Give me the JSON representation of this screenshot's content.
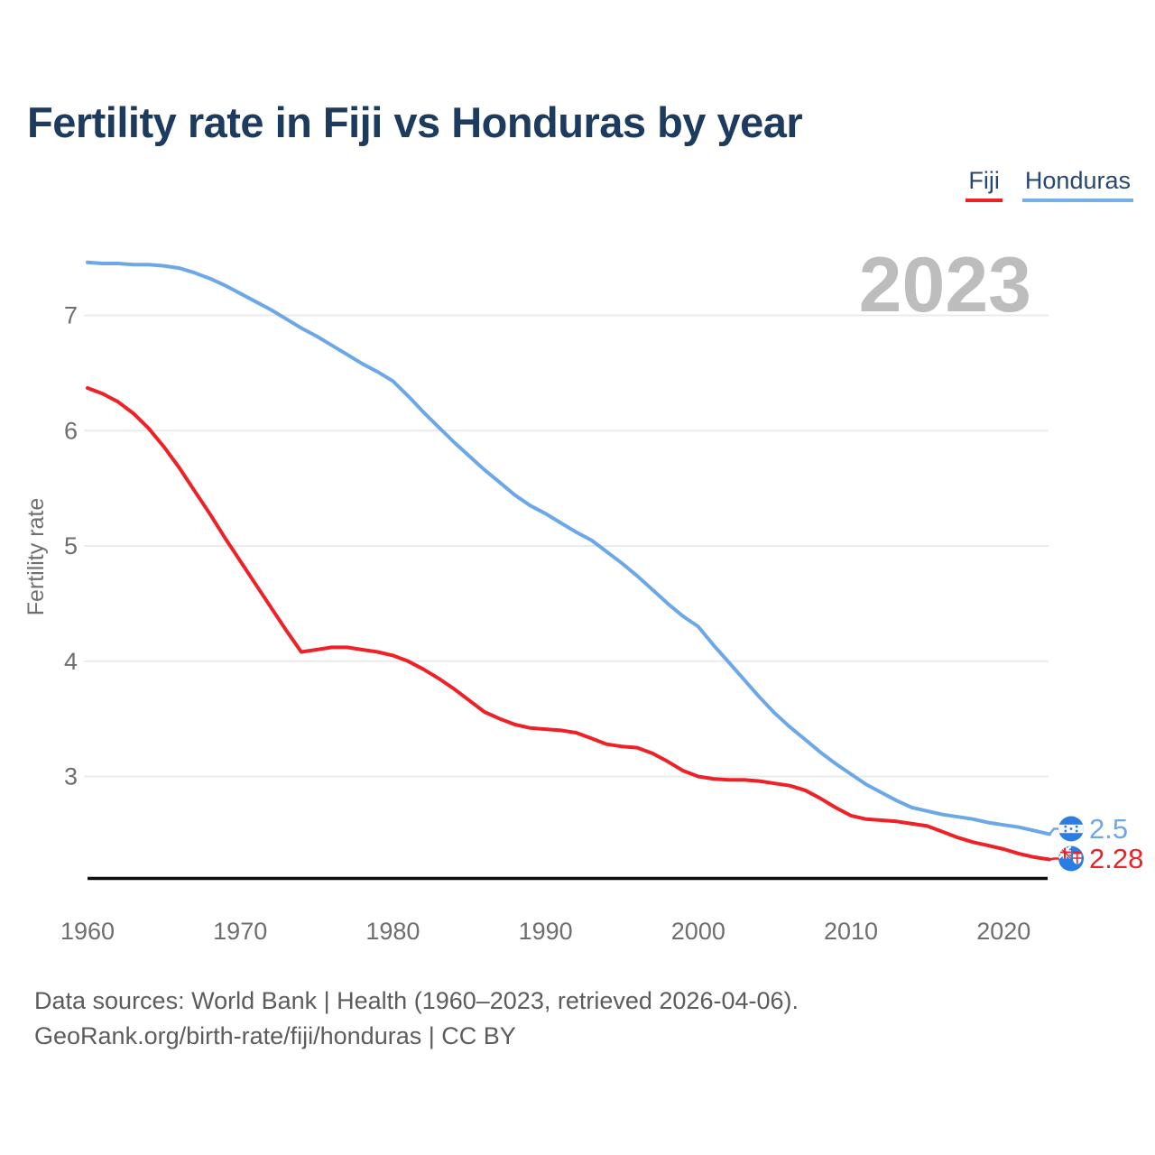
{
  "header": {
    "title": "Fertility rate in Fiji vs Honduras by year"
  },
  "legend": [
    {
      "label": "Fiji",
      "color": "#EE2127"
    },
    {
      "label": "Honduras",
      "color": "#74AFEA"
    }
  ],
  "end_labels": {
    "honduras": "2.5",
    "fiji": "2.28"
  },
  "footer": {
    "line1": "Data sources: World Bank | Health (1960–2023, retrieved 2026-04-06).",
    "line2": "GeoRank.org/birth-rate/fiji/honduras | CC BY"
  },
  "chart_data": {
    "type": "line",
    "title": "Fertility rate in Fiji vs Honduras by year",
    "xlabel": "",
    "ylabel": "Fertility rate",
    "x_ticks": [
      1960,
      1970,
      1980,
      1990,
      2000,
      2010,
      2020
    ],
    "y_ticks": [
      3,
      4,
      5,
      6,
      7
    ],
    "xlim": [
      1960,
      2023
    ],
    "ylim": [
      2.1,
      7.55
    ],
    "grid": "horizontal",
    "legend_position": "top-right",
    "annotations": [
      {
        "text": "2023",
        "position": "top-right"
      }
    ],
    "x": [
      1960,
      1961,
      1962,
      1963,
      1964,
      1965,
      1966,
      1967,
      1968,
      1969,
      1970,
      1971,
      1972,
      1973,
      1974,
      1975,
      1976,
      1977,
      1978,
      1979,
      1980,
      1981,
      1982,
      1983,
      1984,
      1985,
      1986,
      1987,
      1988,
      1989,
      1990,
      1991,
      1992,
      1993,
      1994,
      1995,
      1996,
      1997,
      1998,
      1999,
      2000,
      2001,
      2002,
      2003,
      2004,
      2005,
      2006,
      2007,
      2008,
      2009,
      2010,
      2011,
      2012,
      2013,
      2014,
      2015,
      2016,
      2017,
      2018,
      2019,
      2020,
      2021,
      2022,
      2023
    ],
    "series": [
      {
        "name": "Fiji",
        "color": "#EE2127",
        "end_value": 2.28,
        "values": [
          6.37,
          6.32,
          6.25,
          6.15,
          6.02,
          5.86,
          5.68,
          5.48,
          5.28,
          5.07,
          4.87,
          4.67,
          4.47,
          4.27,
          4.08,
          4.1,
          4.12,
          4.12,
          4.1,
          4.08,
          4.05,
          4.0,
          3.93,
          3.85,
          3.76,
          3.66,
          3.56,
          3.5,
          3.45,
          3.42,
          3.41,
          3.4,
          3.38,
          3.33,
          3.28,
          3.26,
          3.25,
          3.2,
          3.13,
          3.05,
          3.0,
          2.98,
          2.97,
          2.97,
          2.96,
          2.94,
          2.92,
          2.88,
          2.81,
          2.73,
          2.66,
          2.63,
          2.62,
          2.61,
          2.59,
          2.57,
          2.52,
          2.47,
          2.43,
          2.4,
          2.37,
          2.33,
          2.3,
          2.28
        ]
      },
      {
        "name": "Honduras",
        "color": "#6CA8E8",
        "end_value": 2.5,
        "values": [
          7.46,
          7.45,
          7.45,
          7.44,
          7.44,
          7.43,
          7.41,
          7.37,
          7.32,
          7.26,
          7.19,
          7.12,
          7.05,
          6.97,
          6.89,
          6.82,
          6.74,
          6.66,
          6.58,
          6.51,
          6.43,
          6.3,
          6.16,
          6.03,
          5.9,
          5.78,
          5.66,
          5.55,
          5.44,
          5.35,
          5.28,
          5.2,
          5.12,
          5.05,
          4.95,
          4.85,
          4.74,
          4.62,
          4.5,
          4.39,
          4.3,
          4.14,
          3.99,
          3.84,
          3.69,
          3.55,
          3.43,
          3.32,
          3.21,
          3.11,
          3.02,
          2.93,
          2.86,
          2.79,
          2.73,
          2.7,
          2.67,
          2.65,
          2.63,
          2.6,
          2.58,
          2.56,
          2.53,
          2.5
        ]
      }
    ]
  }
}
